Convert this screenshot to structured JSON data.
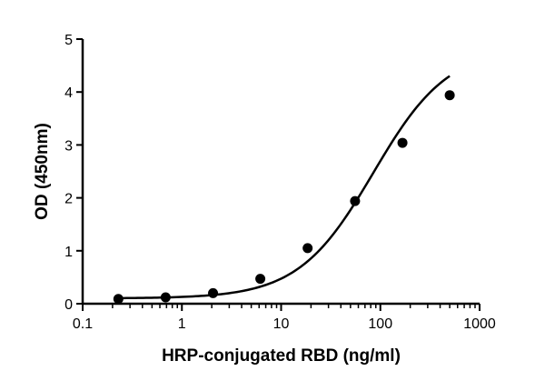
{
  "chart_data": {
    "type": "scatter",
    "xlabel": "HRP-conjugated RBD (ng/ml)",
    "ylabel": "OD (450nm)",
    "x_scale": "log",
    "xlim": [
      0.1,
      1000
    ],
    "ylim": [
      0,
      5
    ],
    "x_ticks": [
      0.1,
      1,
      10,
      100,
      1000
    ],
    "x_tick_labels": [
      "0.1",
      "1",
      "10",
      "100",
      "1000"
    ],
    "y_ticks": [
      0,
      1,
      2,
      3,
      4,
      5
    ],
    "y_tick_labels": [
      "0",
      "1",
      "2",
      "3",
      "4",
      "5"
    ],
    "grid": false,
    "series": [
      {
        "x": [
          0.229,
          0.686,
          2.06,
          6.17,
          18.5,
          55.6,
          167,
          500
        ],
        "y": [
          0.09,
          0.12,
          0.2,
          0.47,
          1.05,
          1.94,
          3.04,
          3.94
        ],
        "fit": "4PL sigmoidal curve",
        "color": "#000000",
        "marker": "circle"
      }
    ]
  }
}
